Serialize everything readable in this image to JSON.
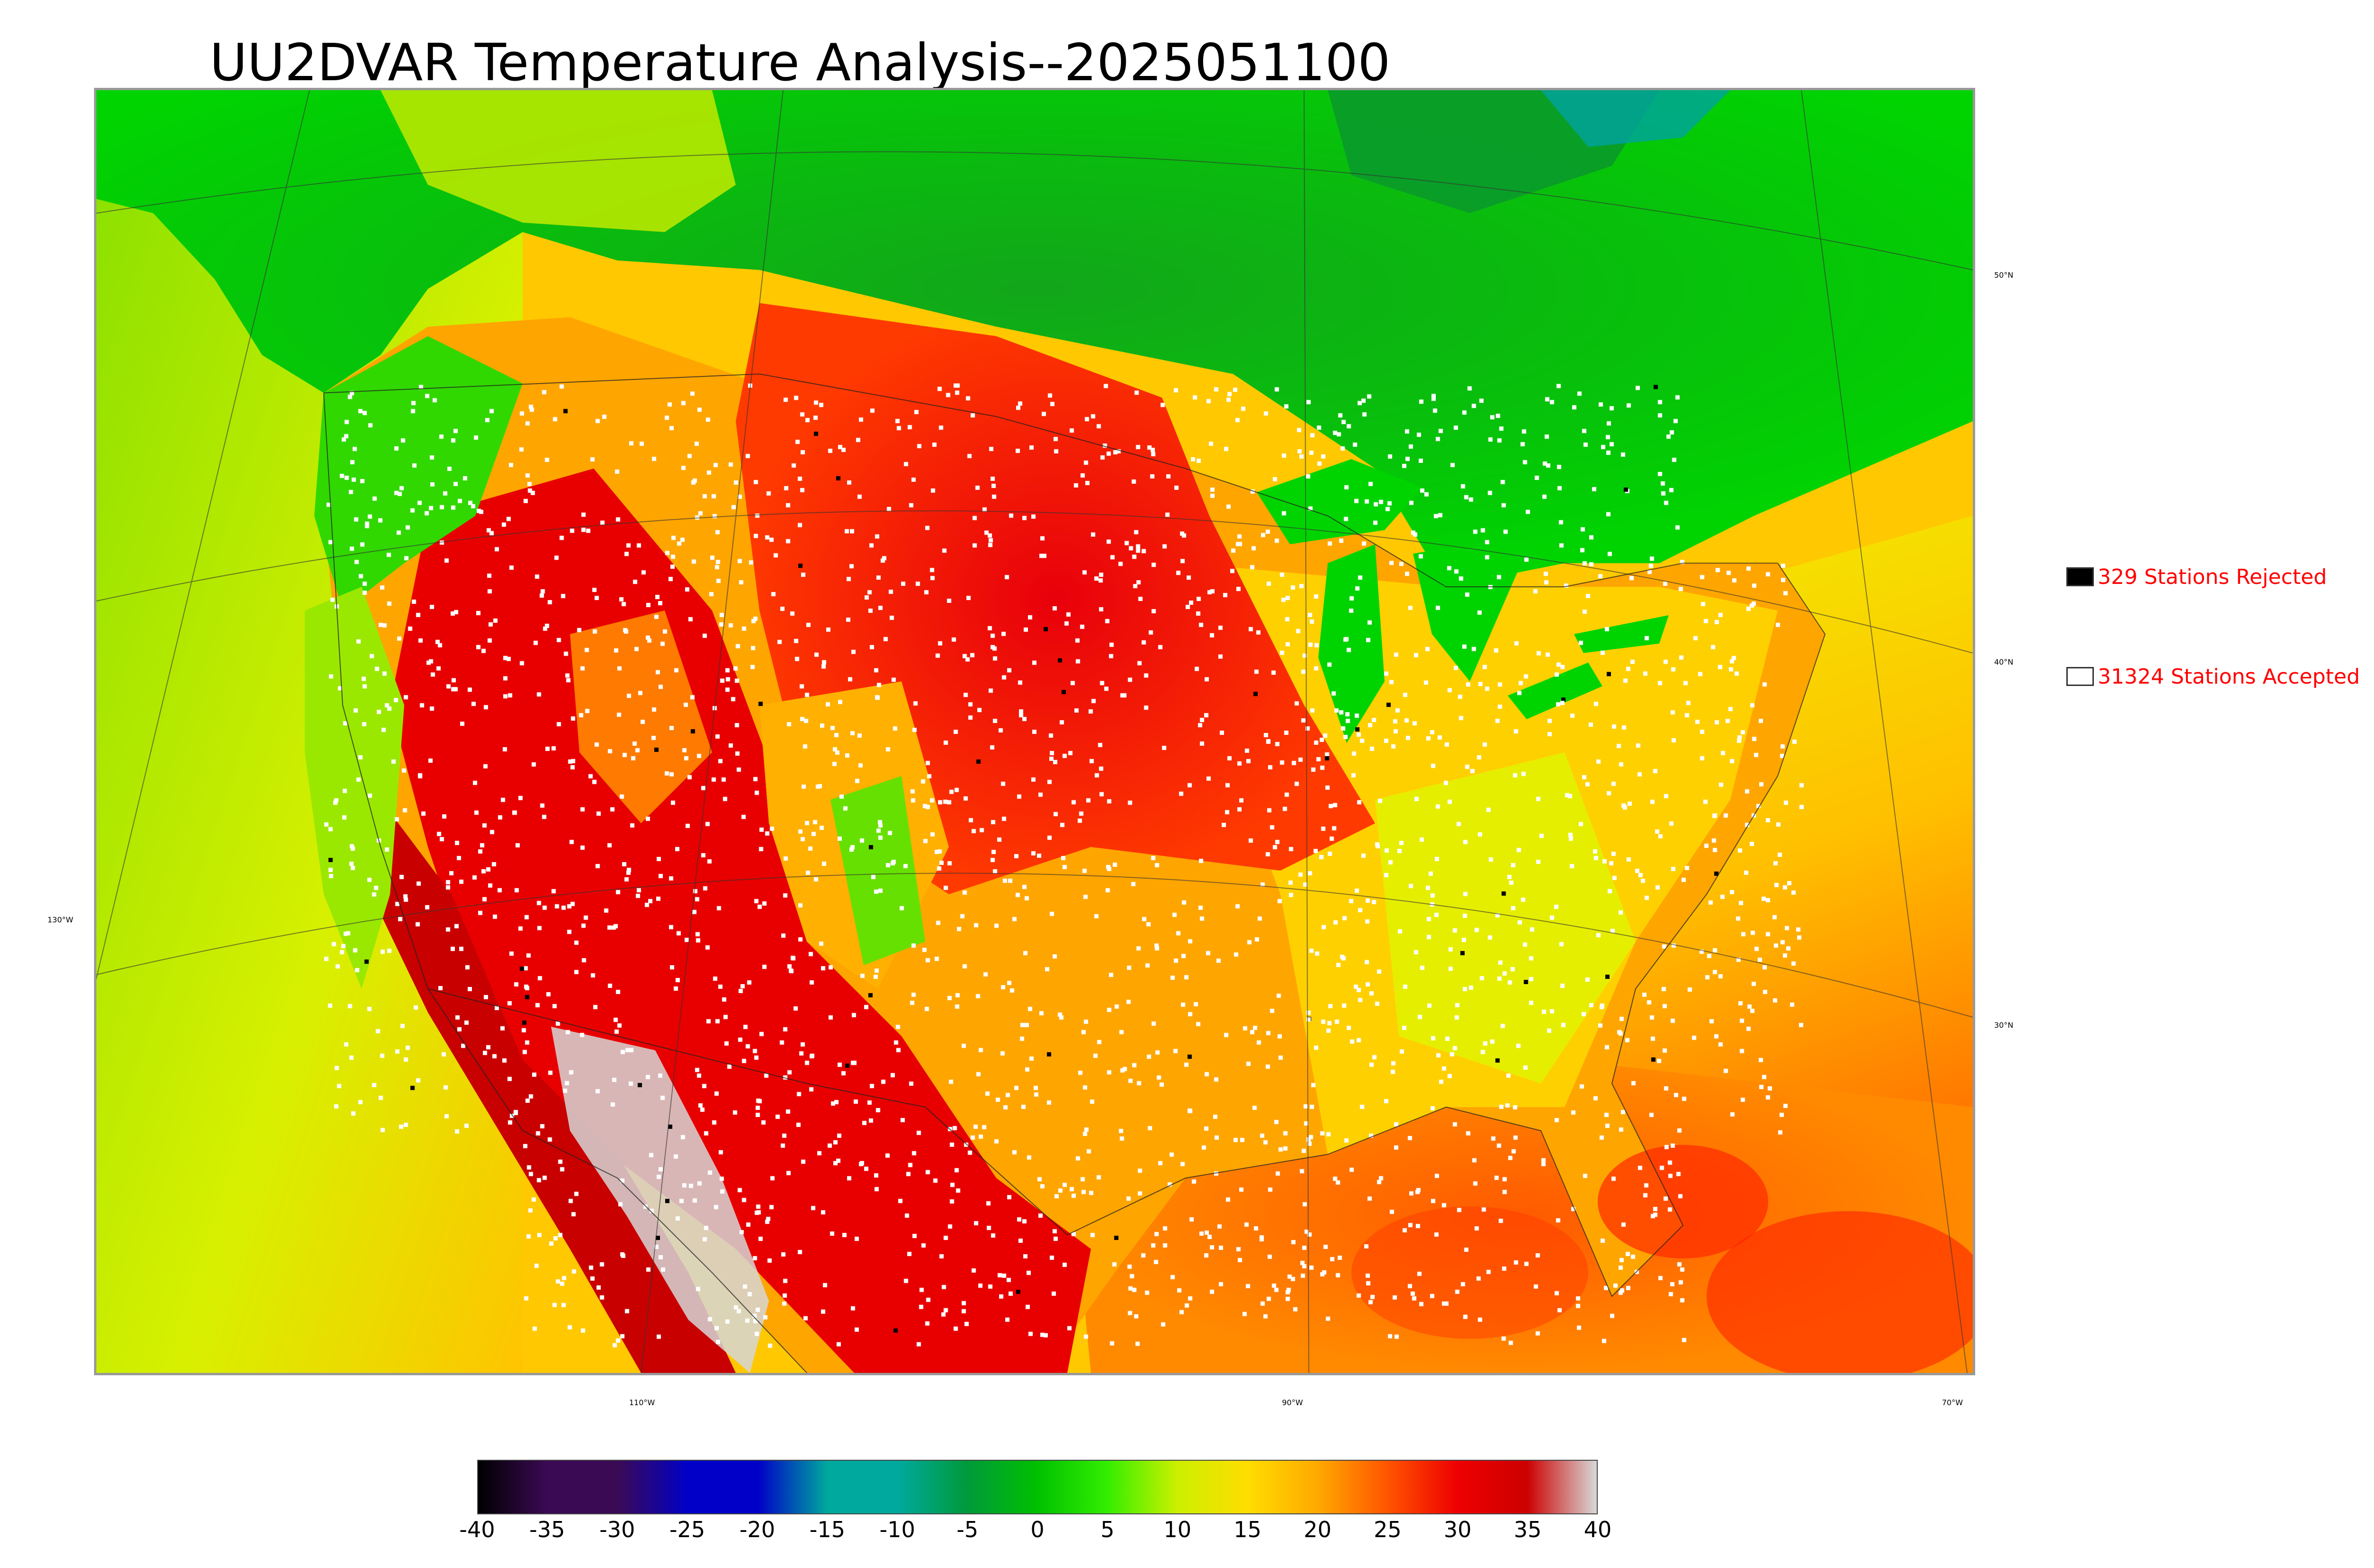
{
  "title": "UU2DVAR Temperature Analysis--2025051100",
  "legend": {
    "rejected": {
      "label": "329 Stations Rejected",
      "color": "#000000"
    },
    "accepted": {
      "label": "31324 Stations Accepted",
      "color": "#ffffff"
    }
  },
  "coord_labels": {
    "lat_50": "50°N",
    "lat_40": "40°N",
    "lat_30": "30°N",
    "lon_130": "130°W",
    "lon_110": "110°W",
    "lon_90": "90°W",
    "lon_70": "70°W"
  },
  "colorbar": {
    "ticks": [
      "-40",
      "-35",
      "-30",
      "-25",
      "-20",
      "-15",
      "-10",
      "-5",
      "0",
      "5",
      "10",
      "15",
      "20",
      "25",
      "30",
      "35",
      "40"
    ],
    "colors": [
      "#000000",
      "#3b0a55",
      "#3b0a55",
      "#0000c8",
      "#0000c8",
      "#00a99d",
      "#00a99d",
      "#009a3a",
      "#00c000",
      "#33ee00",
      "#ccf000",
      "#ffdd00",
      "#ffaa00",
      "#ff5500",
      "#ee0000",
      "#cc0000",
      "#d8d8d8"
    ]
  }
}
